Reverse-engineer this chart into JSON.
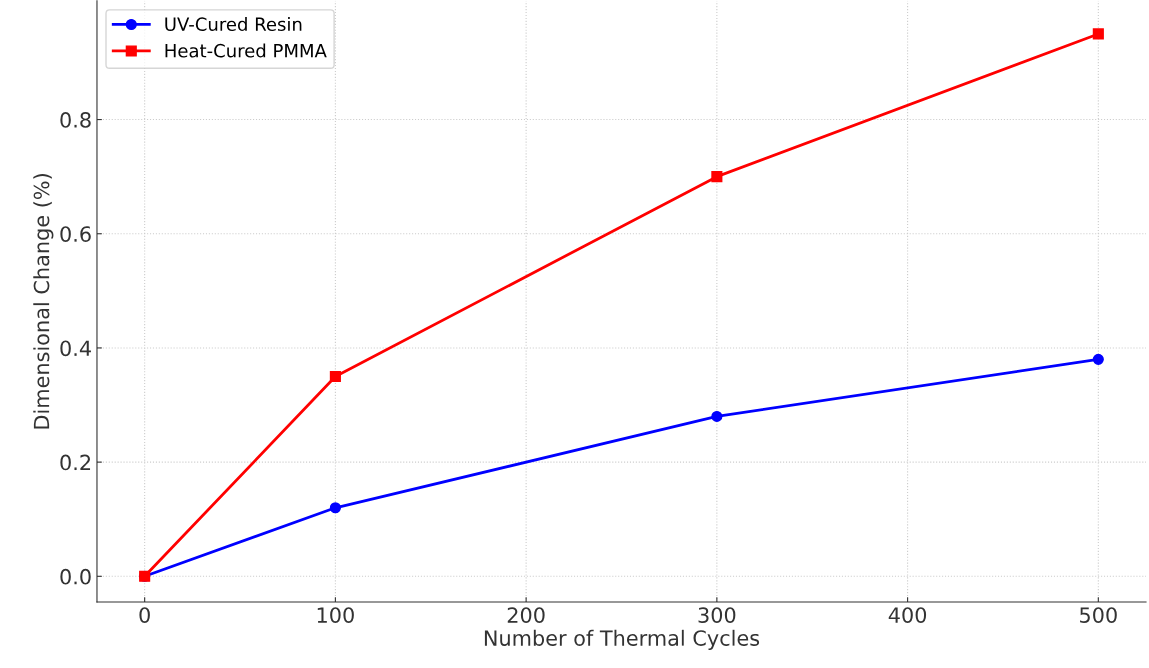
{
  "chart_data": {
    "type": "line",
    "xlabel": "Number of Thermal Cycles",
    "ylabel": "Dimensional Change (%)",
    "x": [
      0,
      100,
      300,
      500
    ],
    "series": [
      {
        "name": "UV-Cured Resin",
        "color": "#0000ff",
        "values": [
          0,
          0.12,
          0.28,
          0.38
        ],
        "marker": "circle"
      },
      {
        "name": "Heat-Cured PMMA",
        "color": "#ff0000",
        "values": [
          0,
          0.35,
          0.7,
          0.95
        ],
        "marker": "square"
      }
    ],
    "xlim": [
      -25,
      525
    ],
    "xticks": [
      0,
      100,
      200,
      300,
      400,
      500
    ],
    "ylim": [
      -0.045,
      1.008
    ],
    "yticks": [
      {
        "value": 0,
        "label": "0.0"
      },
      {
        "value": 0.2,
        "label": "0.2"
      },
      {
        "value": 0.4,
        "label": "0.4"
      },
      {
        "value": 0.6,
        "label": "0.6"
      },
      {
        "value": 0.8,
        "label": "0.8"
      }
    ],
    "grid": true,
    "legend": "top left",
    "line_style": "solid"
  }
}
